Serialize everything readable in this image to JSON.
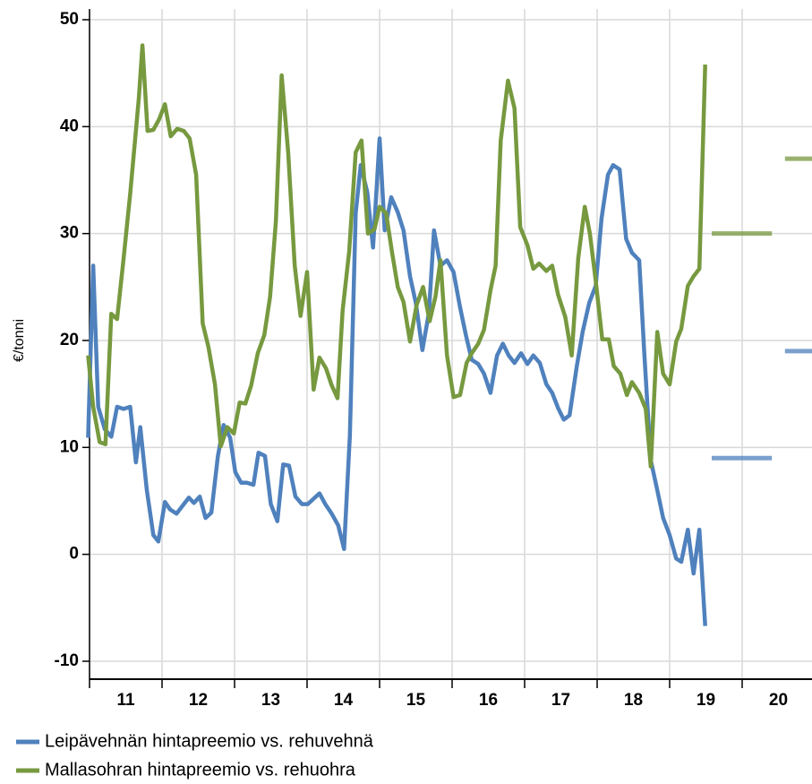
{
  "chart_data": {
    "type": "line",
    "y_label": "€/tonni",
    "xlim": [
      11,
      21
    ],
    "xticks": [
      {
        "value": 11.5,
        "label": "11"
      },
      {
        "value": 12.5,
        "label": "12"
      },
      {
        "value": 13.5,
        "label": "13"
      },
      {
        "value": 14.5,
        "label": "14"
      },
      {
        "value": 15.5,
        "label": "15"
      },
      {
        "value": 16.5,
        "label": "16"
      },
      {
        "value": 17.5,
        "label": "17"
      },
      {
        "value": 18.5,
        "label": "18"
      },
      {
        "value": 19.5,
        "label": "19"
      },
      {
        "value": 20.5,
        "label": "20"
      }
    ],
    "ylim": [
      -12,
      51
    ],
    "yticks": [
      -10,
      0,
      10,
      20,
      30,
      40,
      50
    ],
    "grid": true,
    "legend": "bottom-left",
    "series": [
      {
        "name": "Leipävehnän hintapreemio vs. rehuvehnä",
        "color": "#4f81bd",
        "x": [
          10.98,
          11.05,
          11.12,
          11.21,
          11.3,
          11.38,
          11.47,
          11.56,
          11.64,
          11.7,
          11.79,
          11.88,
          11.95,
          12.04,
          12.11,
          12.2,
          12.29,
          12.37,
          12.44,
          12.52,
          12.6,
          12.68,
          12.77,
          12.85,
          12.94,
          13.01,
          13.09,
          13.17,
          13.26,
          13.33,
          13.42,
          13.5,
          13.59,
          13.67,
          13.75,
          13.84,
          13.93,
          14.01,
          14.09,
          14.17,
          14.25,
          14.34,
          14.43,
          14.51,
          14.59,
          14.67,
          14.74,
          14.83,
          14.91,
          15.0,
          15.07,
          15.16,
          15.25,
          15.33,
          15.42,
          15.5,
          15.59,
          15.68,
          15.75,
          15.84,
          15.93,
          16.02,
          16.11,
          16.19,
          16.27,
          16.36,
          16.44,
          16.53,
          16.62,
          16.7,
          16.78,
          16.86,
          16.95,
          17.04,
          17.12,
          17.21,
          17.3,
          17.38,
          17.46,
          17.54,
          17.62,
          17.72,
          17.8,
          17.89,
          17.98,
          18.06,
          18.15,
          18.22,
          18.31,
          18.4,
          18.48,
          18.58,
          18.65,
          18.74,
          18.83,
          18.91,
          19.0,
          19.09,
          19.16,
          19.25,
          19.33,
          19.41,
          19.49
        ],
        "values": [
          10.9,
          27,
          13.8,
          11.7,
          11,
          13.8,
          13.6,
          13.8,
          8.6,
          11.9,
          6,
          1.8,
          1.2,
          4.9,
          4.2,
          3.8,
          4.6,
          5.3,
          4.8,
          5.4,
          3.4,
          3.9,
          9.2,
          12.1,
          10.9,
          7.7,
          6.7,
          6.7,
          6.5,
          9.5,
          9.2,
          4.7,
          3.1,
          8.4,
          8.3,
          5.4,
          4.7,
          4.7,
          5.2,
          5.7,
          4.7,
          3.8,
          2.7,
          0.5,
          11.1,
          31.9,
          36.4,
          33.9,
          28.7,
          38.9,
          30.3,
          33.4,
          32,
          30.3,
          26,
          23.5,
          19.1,
          22.6,
          30.3,
          27,
          27.5,
          26.4,
          23.1,
          20.5,
          18.2,
          17.8,
          16.9,
          15.1,
          18.6,
          19.7,
          18.6,
          17.9,
          18.8,
          17.8,
          18.6,
          17.9,
          15.9,
          15.1,
          13.7,
          12.6,
          13,
          17.6,
          20.8,
          23.5,
          25.1,
          31.4,
          35.5,
          36.4,
          36,
          29.5,
          28.2,
          27.5,
          18.9,
          8.8,
          6,
          3.4,
          1.8,
          -0.4,
          -0.7,
          2.3,
          -1.8,
          2.3,
          -6.7
        ],
        "forecasts": [
          {
            "x": [
              19.58,
              20.41
            ],
            "value": 9
          },
          {
            "x": [
              20.59,
              21
            ],
            "value": 19
          }
        ]
      },
      {
        "name": "Mallasohran hintapreemio vs. rehuohra",
        "color": "#77993f",
        "x": [
          10.98,
          11.05,
          11.14,
          11.22,
          11.3,
          11.38,
          11.47,
          11.56,
          11.64,
          11.68,
          11.73,
          11.8,
          11.88,
          11.96,
          12.04,
          12.12,
          12.21,
          12.3,
          12.38,
          12.47,
          12.56,
          12.64,
          12.73,
          12.81,
          12.9,
          12.99,
          13.07,
          13.15,
          13.23,
          13.32,
          13.41,
          13.49,
          13.57,
          13.65,
          13.74,
          13.83,
          13.91,
          14.0,
          14.09,
          14.17,
          14.26,
          14.34,
          14.42,
          14.49,
          14.58,
          14.67,
          14.75,
          14.84,
          14.93,
          15.0,
          15.09,
          15.17,
          15.25,
          15.33,
          15.42,
          15.51,
          15.6,
          15.69,
          15.77,
          15.84,
          15.93,
          16.02,
          16.11,
          16.2,
          16.27,
          16.36,
          16.44,
          16.53,
          16.6,
          16.67,
          16.77,
          16.86,
          16.94,
          17.04,
          17.12,
          17.2,
          17.3,
          17.38,
          17.46,
          17.56,
          17.65,
          17.74,
          17.83,
          17.9,
          17.98,
          18.07,
          18.16,
          18.23,
          18.32,
          18.41,
          18.48,
          18.58,
          18.67,
          18.74,
          18.83,
          18.91,
          19.0,
          19.09,
          19.16,
          19.25,
          19.33,
          19.41,
          19.49
        ],
        "values": [
          18.6,
          13.8,
          10.5,
          10.3,
          22.5,
          22,
          27.7,
          33.7,
          39.6,
          42.7,
          47.6,
          39.6,
          39.7,
          40.7,
          42.1,
          39.1,
          39.8,
          39.6,
          38.9,
          35.5,
          21.6,
          19.4,
          15.9,
          10.1,
          11.9,
          11.3,
          14.2,
          14.1,
          15.8,
          18.8,
          20.5,
          24.1,
          31.2,
          44.8,
          37.6,
          27,
          22.3,
          26.4,
          15.4,
          18.4,
          17.4,
          15.8,
          14.6,
          22.8,
          28.3,
          37.6,
          38.7,
          30,
          30.4,
          32.5,
          31.9,
          28.3,
          25,
          23.6,
          19.9,
          23.3,
          25,
          21.8,
          24.1,
          27.5,
          18.6,
          14.7,
          14.9,
          17.9,
          18.8,
          19.7,
          21,
          24.7,
          27,
          38.7,
          44.3,
          41.7,
          30.6,
          28.9,
          26.7,
          27.2,
          26.5,
          27,
          24.3,
          22.2,
          18.6,
          27.7,
          32.5,
          30,
          25.6,
          20.1,
          20.1,
          17.6,
          16.9,
          14.9,
          16.1,
          15.1,
          13.6,
          8.2,
          20.8,
          16.9,
          15.9,
          19.9,
          21.1,
          25.1,
          26,
          26.7,
          45.8
        ],
        "forecasts": [
          {
            "x": [
              19.58,
              20.41
            ],
            "value": 30
          },
          {
            "x": [
              20.59,
              21
            ],
            "value": 37
          }
        ]
      }
    ]
  }
}
